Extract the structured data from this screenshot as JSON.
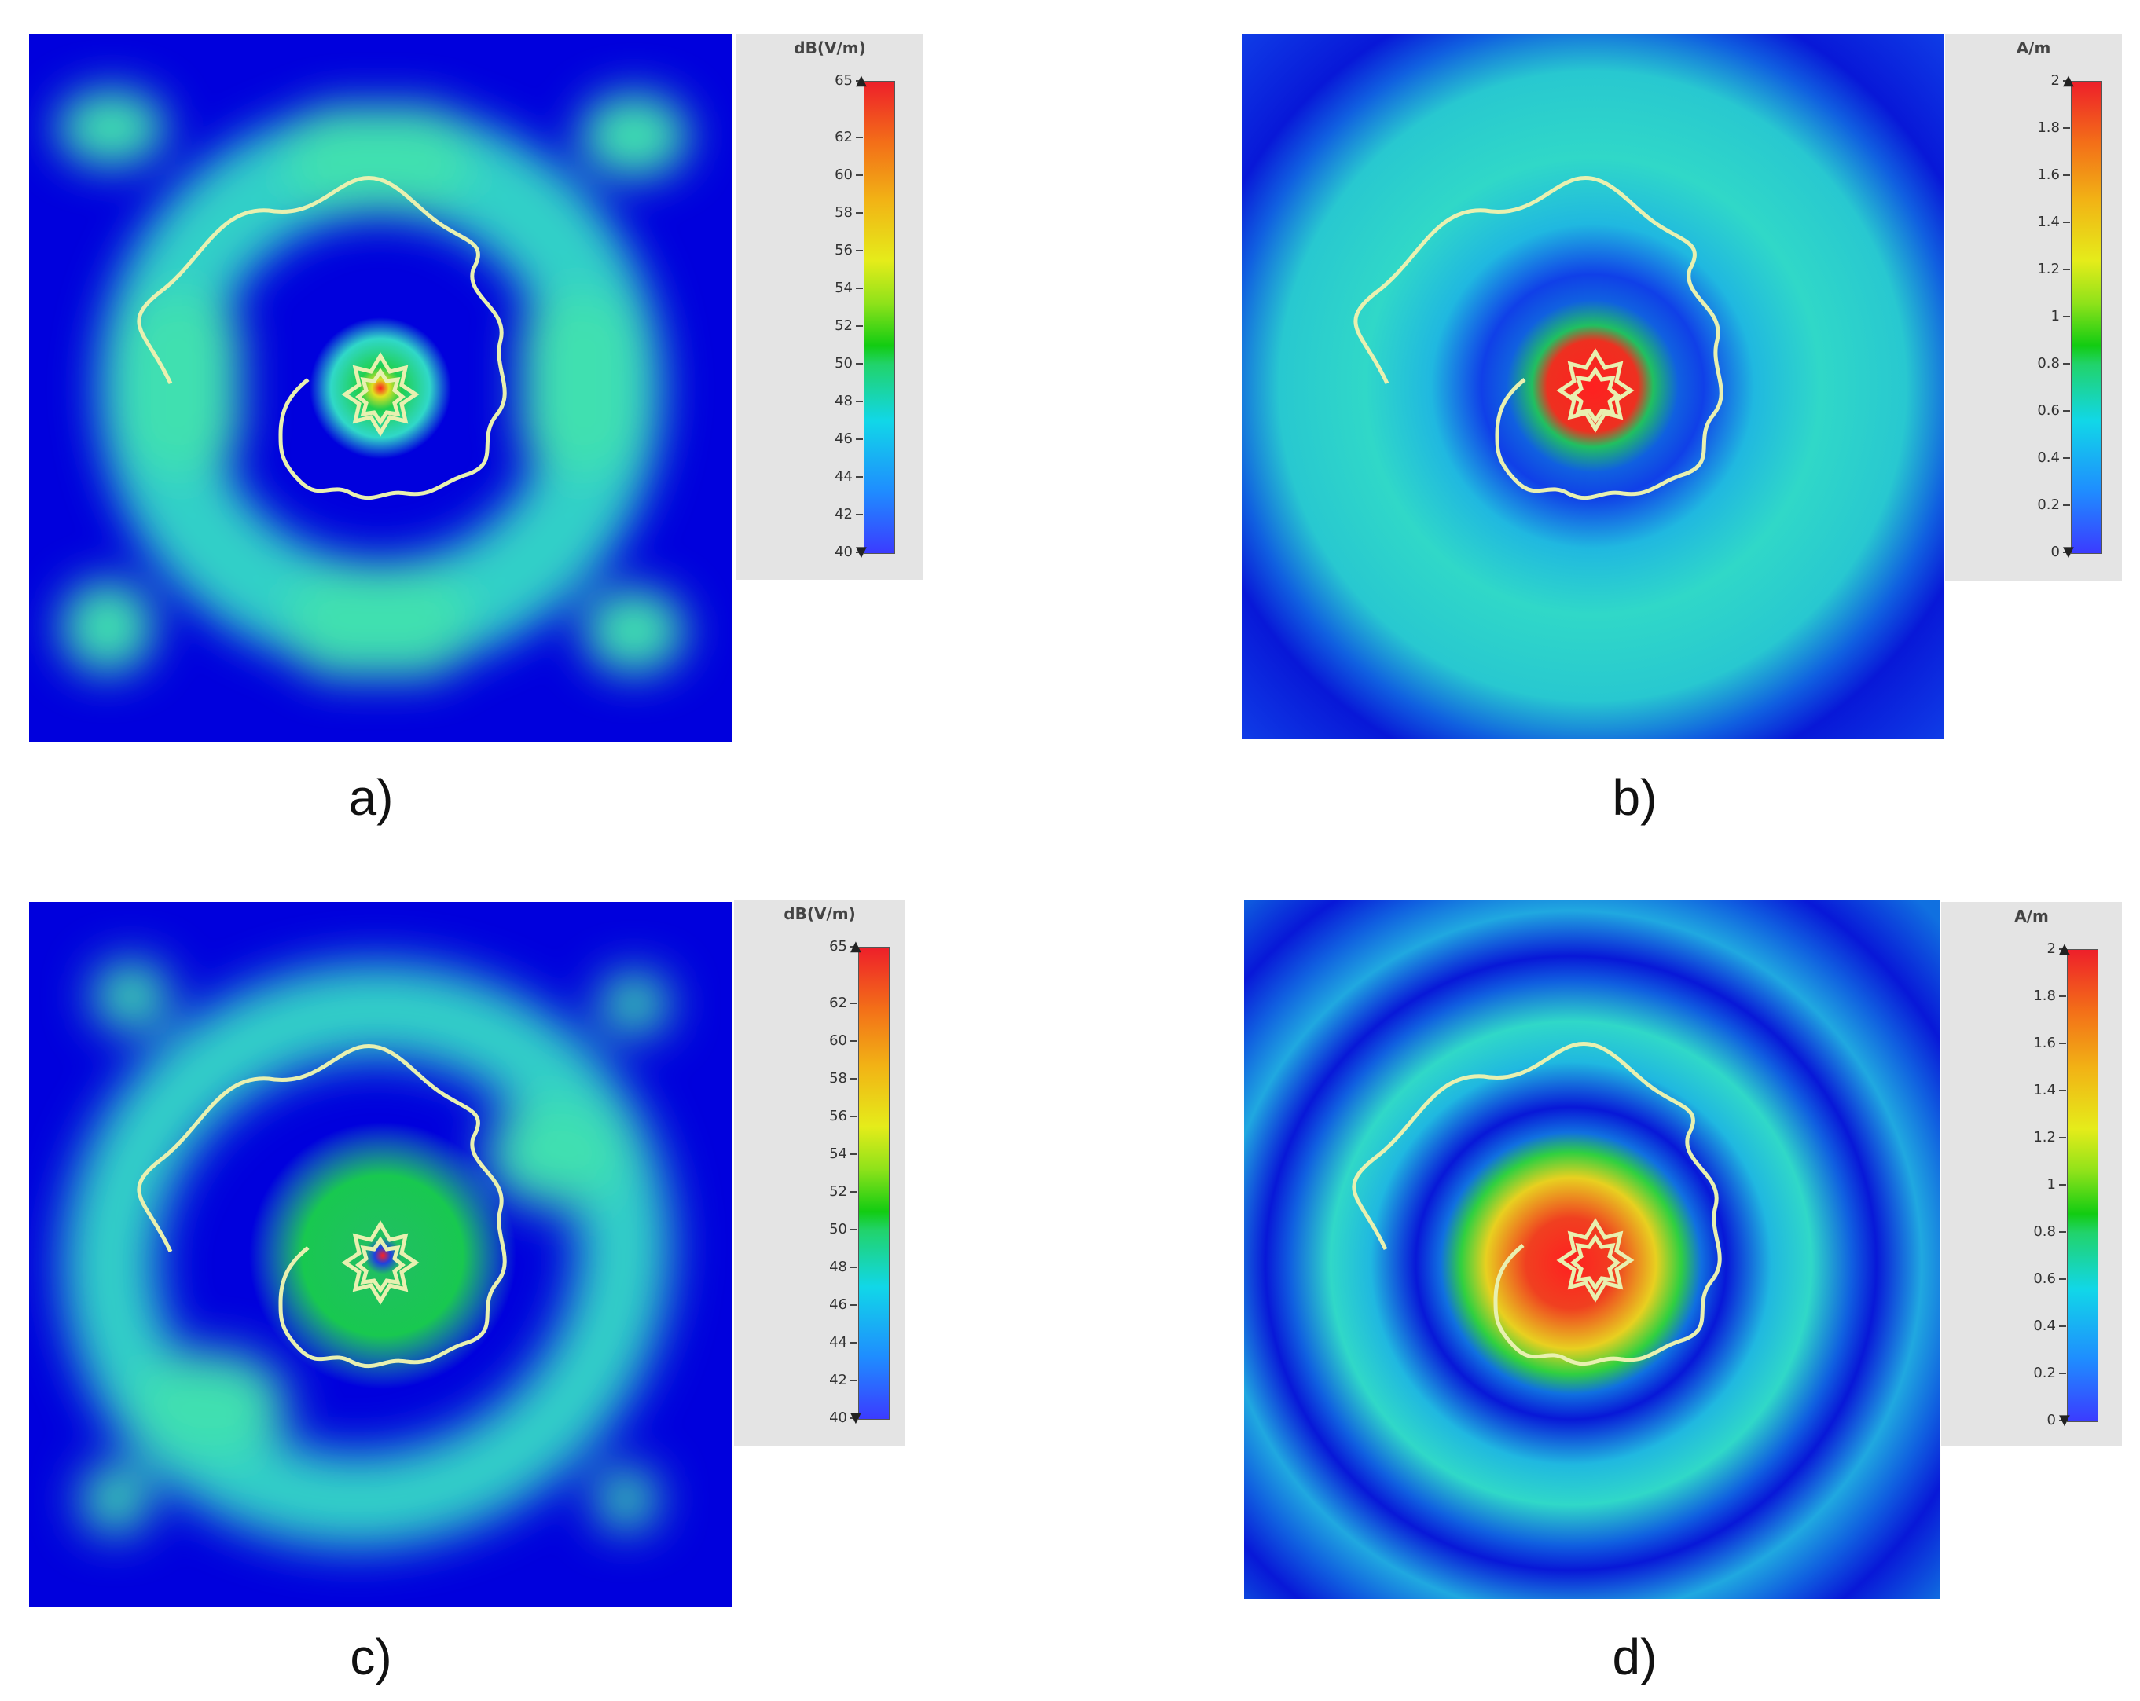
{
  "panels": [
    {
      "id": "a",
      "caption": "a)",
      "unit": "dB(V/m)",
      "ticks": [
        "65",
        "62",
        "60",
        "58",
        "56",
        "54",
        "52",
        "50",
        "48",
        "46",
        "44",
        "42",
        "40"
      ],
      "tick_values": [
        65,
        62,
        60,
        58,
        56,
        54,
        52,
        50,
        48,
        46,
        44,
        42,
        40
      ],
      "scale": [
        40,
        65
      ],
      "field": "electric-field"
    },
    {
      "id": "b",
      "caption": "b)",
      "unit": "A/m",
      "ticks": [
        "2",
        "1.8",
        "1.6",
        "1.4",
        "1.2",
        "1",
        "0.8",
        "0.6",
        "0.4",
        "0.2",
        "0"
      ],
      "tick_values": [
        2,
        1.8,
        1.6,
        1.4,
        1.2,
        1,
        0.8,
        0.6,
        0.4,
        0.2,
        0
      ],
      "scale": [
        0,
        2
      ],
      "field": "magnetic-field"
    },
    {
      "id": "c",
      "caption": "c)",
      "unit": "dB(V/m)",
      "ticks": [
        "65",
        "62",
        "60",
        "58",
        "56",
        "54",
        "52",
        "50",
        "48",
        "46",
        "44",
        "42",
        "40"
      ],
      "tick_values": [
        65,
        62,
        60,
        58,
        56,
        54,
        52,
        50,
        48,
        46,
        44,
        42,
        40
      ],
      "scale": [
        40,
        65
      ],
      "field": "electric-field"
    },
    {
      "id": "d",
      "caption": "d)",
      "unit": "A/m",
      "ticks": [
        "2",
        "1.8",
        "1.6",
        "1.4",
        "1.2",
        "1",
        "0.8",
        "0.6",
        "0.4",
        "0.2",
        "0"
      ],
      "tick_values": [
        2,
        1.8,
        1.6,
        1.4,
        1.2,
        1,
        0.8,
        0.6,
        0.4,
        0.2,
        0
      ],
      "scale": [
        0,
        2
      ],
      "field": "magnetic-field"
    }
  ],
  "colors": {
    "background_field": "#0000dd",
    "coil_outline": "#e8f0b0"
  }
}
